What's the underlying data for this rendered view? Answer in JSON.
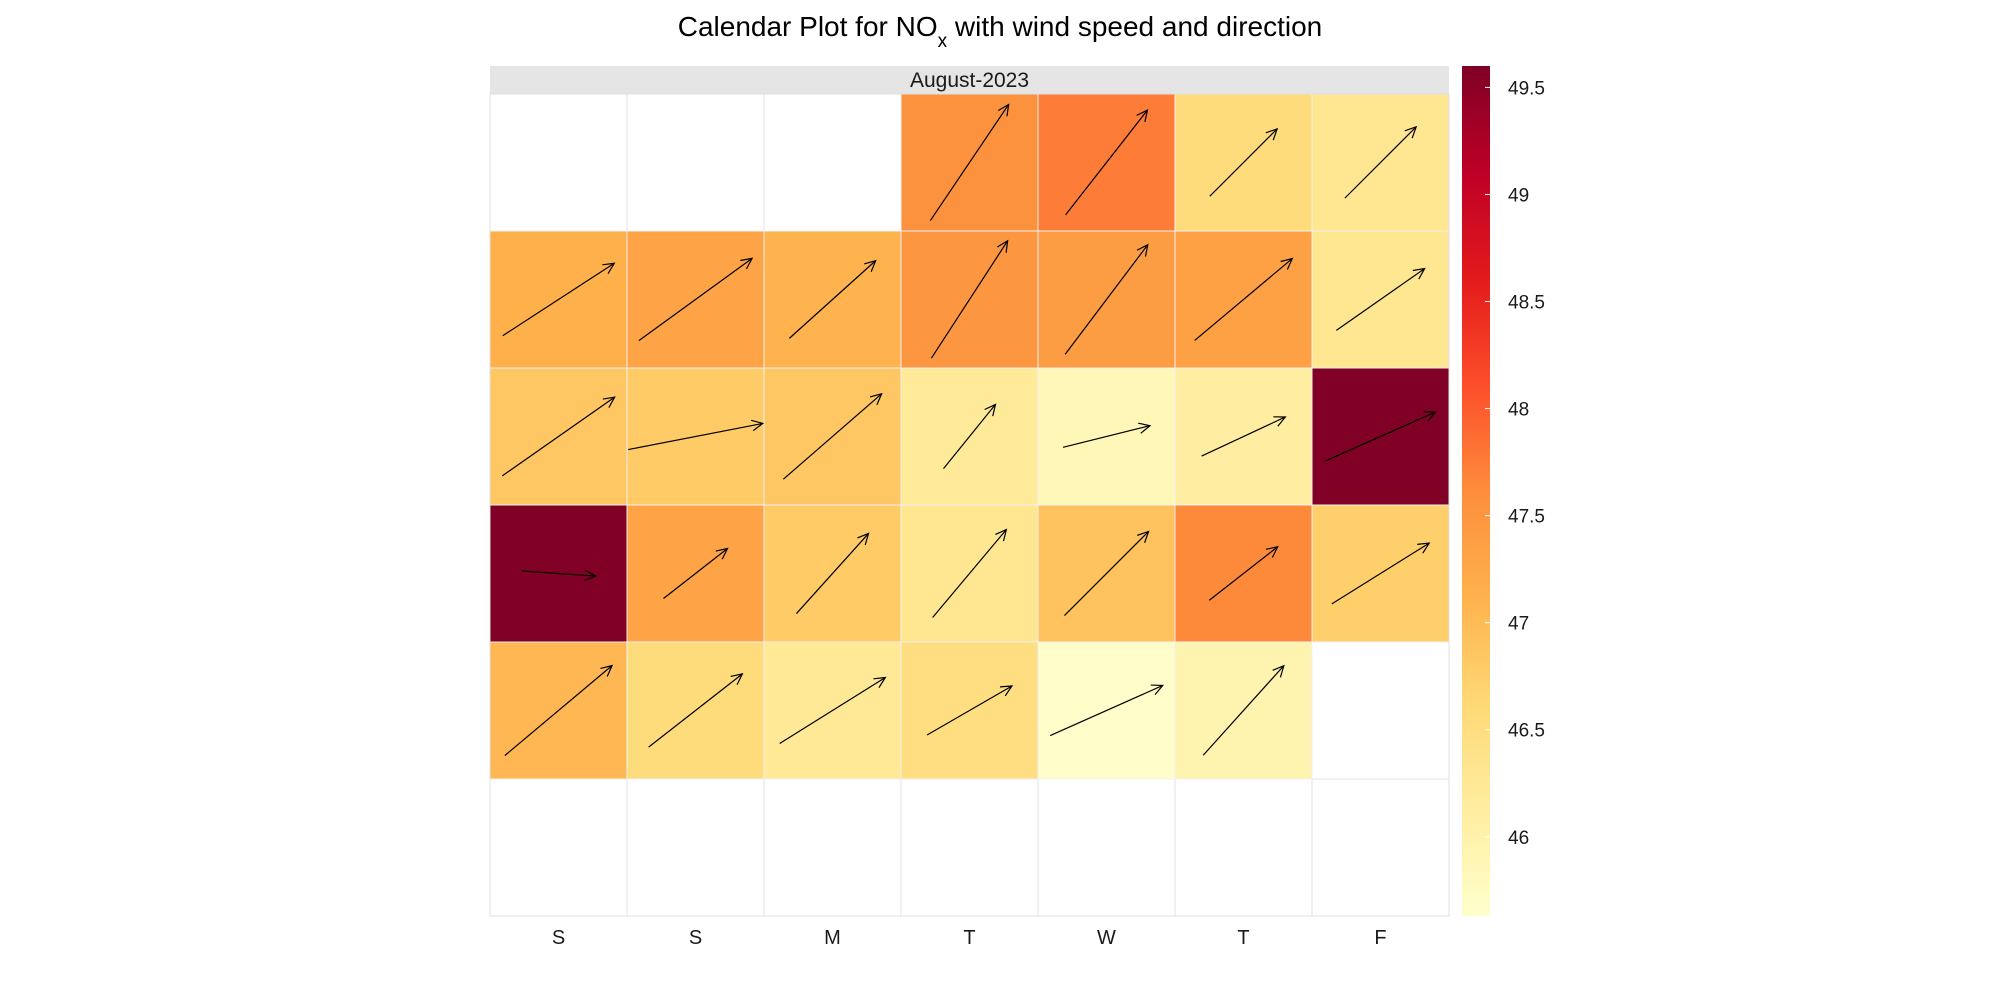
{
  "chart_data": {
    "type": "heatmap",
    "title": {
      "prefix": "Calendar Plot for NO",
      "subscript": "x",
      "suffix": " with wind speed and direction"
    },
    "panel_title": "August-2023",
    "weekdays": [
      "S",
      "S",
      "M",
      "T",
      "W",
      "T",
      "F"
    ],
    "colorbar": {
      "min": 45.63,
      "max": 49.6,
      "ticks": [
        49.5,
        49,
        48.5,
        48,
        47.5,
        47,
        46.5,
        46
      ],
      "tick_labels": [
        "49.5",
        "49",
        "48.5",
        "48",
        "47.5",
        "47",
        "46.5",
        "46"
      ],
      "palette": [
        "#ffffcc",
        "#ffeda0",
        "#fed976",
        "#feb24c",
        "#fd8d3c",
        "#fc4e2a",
        "#e31a1c",
        "#bd0026",
        "#800026"
      ]
    },
    "empty_cell_color": "#ffffff",
    "days": [
      {
        "date": "2023-08-01",
        "week": 0,
        "weekday": 3,
        "nox": 47.55,
        "wind_dir": 34,
        "wind_speed": 1.0
      },
      {
        "date": "2023-08-02",
        "week": 0,
        "weekday": 4,
        "nox": 47.75,
        "wind_dir": 38,
        "wind_speed": 0.95
      },
      {
        "date": "2023-08-03",
        "week": 0,
        "weekday": 5,
        "nox": 46.55,
        "wind_dir": 45,
        "wind_speed": 0.68
      },
      {
        "date": "2023-08-04",
        "week": 0,
        "weekday": 6,
        "nox": 46.3,
        "wind_dir": 45,
        "wind_speed": 0.72
      },
      {
        "date": "2023-08-05",
        "week": 1,
        "weekday": 0,
        "nox": 47.15,
        "wind_dir": 57,
        "wind_speed": 0.95
      },
      {
        "date": "2023-08-06",
        "week": 1,
        "weekday": 1,
        "nox": 47.3,
        "wind_dir": 54,
        "wind_speed": 1.0
      },
      {
        "date": "2023-08-07",
        "week": 1,
        "weekday": 2,
        "nox": 47.1,
        "wind_dir": 48,
        "wind_speed": 0.83
      },
      {
        "date": "2023-08-08",
        "week": 1,
        "weekday": 3,
        "nox": 47.5,
        "wind_dir": 33,
        "wind_speed": 1.0
      },
      {
        "date": "2023-08-09",
        "week": 1,
        "weekday": 4,
        "nox": 47.4,
        "wind_dir": 37,
        "wind_speed": 0.98
      },
      {
        "date": "2023-08-10",
        "week": 1,
        "weekday": 5,
        "nox": 47.35,
        "wind_dir": 50,
        "wind_speed": 0.91
      },
      {
        "date": "2023-08-11",
        "week": 1,
        "weekday": 6,
        "nox": 46.3,
        "wind_dir": 55,
        "wind_speed": 0.77
      },
      {
        "date": "2023-08-12",
        "week": 2,
        "weekday": 0,
        "nox": 46.85,
        "wind_dir": 55,
        "wind_speed": 0.98
      },
      {
        "date": "2023-08-13",
        "week": 2,
        "weekday": 1,
        "nox": 46.8,
        "wind_dir": 79,
        "wind_speed": 0.98
      },
      {
        "date": "2023-08-14",
        "week": 2,
        "weekday": 2,
        "nox": 46.85,
        "wind_dir": 49,
        "wind_speed": 0.93
      },
      {
        "date": "2023-08-15",
        "week": 2,
        "weekday": 3,
        "nox": 46.2,
        "wind_dir": 39,
        "wind_speed": 0.59
      },
      {
        "date": "2023-08-16",
        "week": 2,
        "weekday": 4,
        "nox": 45.85,
        "wind_dir": 76,
        "wind_speed": 0.64
      },
      {
        "date": "2023-08-17",
        "week": 2,
        "weekday": 5,
        "nox": 46.1,
        "wind_dir": 65,
        "wind_speed": 0.66
      },
      {
        "date": "2023-08-18",
        "week": 2,
        "weekday": 6,
        "nox": 49.6,
        "wind_dir": 66,
        "wind_speed": 0.86
      },
      {
        "date": "2023-08-19",
        "week": 3,
        "weekday": 0,
        "nox": 49.6,
        "wind_dir": 94,
        "wind_speed": 0.53
      },
      {
        "date": "2023-08-20",
        "week": 3,
        "weekday": 1,
        "nox": 47.3,
        "wind_dir": 52,
        "wind_speed": 0.58
      },
      {
        "date": "2023-08-21",
        "week": 3,
        "weekday": 2,
        "nox": 46.8,
        "wind_dir": 42,
        "wind_speed": 0.77
      },
      {
        "date": "2023-08-22",
        "week": 3,
        "weekday": 3,
        "nox": 46.3,
        "wind_dir": 40,
        "wind_speed": 0.82
      },
      {
        "date": "2023-08-23",
        "week": 3,
        "weekday": 4,
        "nox": 46.9,
        "wind_dir": 45,
        "wind_speed": 0.85
      },
      {
        "date": "2023-08-24",
        "week": 3,
        "weekday": 5,
        "nox": 47.65,
        "wind_dir": 52,
        "wind_speed": 0.62
      },
      {
        "date": "2023-08-25",
        "week": 3,
        "weekday": 6,
        "nox": 46.75,
        "wind_dir": 58,
        "wind_speed": 0.82
      },
      {
        "date": "2023-08-26",
        "week": 4,
        "weekday": 0,
        "nox": 47.05,
        "wind_dir": 50,
        "wind_speed": 1.0
      },
      {
        "date": "2023-08-27",
        "week": 4,
        "weekday": 1,
        "nox": 46.55,
        "wind_dir": 52,
        "wind_speed": 0.85
      },
      {
        "date": "2023-08-28",
        "week": 4,
        "weekday": 2,
        "nox": 46.25,
        "wind_dir": 58,
        "wind_speed": 0.89
      },
      {
        "date": "2023-08-29",
        "week": 4,
        "weekday": 3,
        "nox": 46.5,
        "wind_dir": 60,
        "wind_speed": 0.7
      },
      {
        "date": "2023-08-30",
        "week": 4,
        "weekday": 4,
        "nox": 45.65,
        "wind_dir": 66,
        "wind_speed": 0.88
      },
      {
        "date": "2023-08-31",
        "week": 4,
        "weekday": 5,
        "nox": 45.95,
        "wind_dir": 42,
        "wind_speed": 0.86
      }
    ]
  }
}
